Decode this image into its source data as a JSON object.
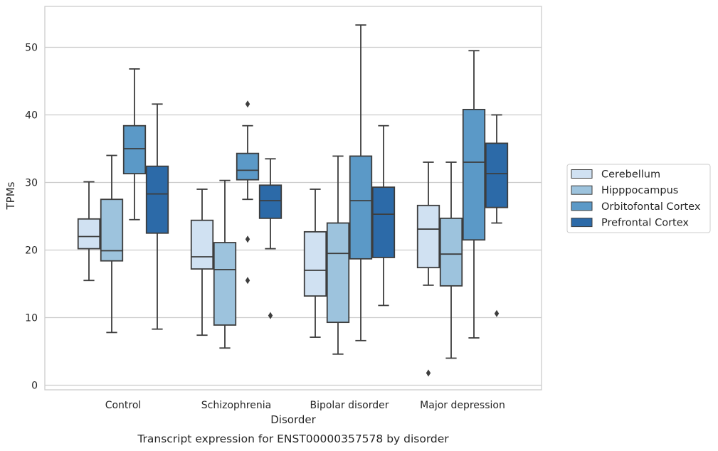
{
  "chart_data": {
    "type": "box",
    "caption": "Transcript expression for ENST00000357578 by disorder",
    "xlabel": "Disorder",
    "ylabel": "TPMs",
    "ylim": [
      -0.5,
      56
    ],
    "yticks": [
      0,
      10,
      20,
      30,
      40,
      50
    ],
    "grid": "horizontal",
    "legend_position": "right",
    "categories": [
      "Control",
      "Schizophrenia",
      "Bipolar disorder",
      "Major depression"
    ],
    "series": [
      {
        "name": "Cerebellum",
        "color": "#d0e1f2",
        "boxes": [
          {
            "whislo": 15.5,
            "q1": 20.2,
            "med": 22.0,
            "q3": 24.6,
            "whishi": 30.1,
            "fliers": []
          },
          {
            "whislo": 7.4,
            "q1": 17.2,
            "med": 19.0,
            "q3": 24.4,
            "whishi": 29.0,
            "fliers": []
          },
          {
            "whislo": 7.1,
            "q1": 13.2,
            "med": 17.0,
            "q3": 22.7,
            "whishi": 29.0,
            "fliers": []
          },
          {
            "whislo": 14.8,
            "q1": 17.4,
            "med": 23.1,
            "q3": 26.6,
            "whishi": 33.0,
            "fliers": [
              1.8
            ]
          }
        ]
      },
      {
        "name": "Hipppocampus",
        "color": "#9dc3dd",
        "boxes": [
          {
            "whislo": 7.8,
            "q1": 18.4,
            "med": 19.9,
            "q3": 27.5,
            "whishi": 34.0,
            "fliers": []
          },
          {
            "whislo": 5.5,
            "q1": 8.9,
            "med": 17.1,
            "q3": 21.1,
            "whishi": 30.3,
            "fliers": []
          },
          {
            "whislo": 4.6,
            "q1": 9.3,
            "med": 19.5,
            "q3": 24.0,
            "whishi": 33.9,
            "fliers": []
          },
          {
            "whislo": 4.0,
            "q1": 14.7,
            "med": 19.4,
            "q3": 24.7,
            "whishi": 33.0,
            "fliers": []
          }
        ]
      },
      {
        "name": "Orbitofontal Cortex",
        "color": "#5b99c7",
        "boxes": [
          {
            "whislo": 24.5,
            "q1": 31.3,
            "med": 35.0,
            "q3": 38.4,
            "whishi": 46.8,
            "fliers": []
          },
          {
            "whislo": 27.5,
            "q1": 30.4,
            "med": 31.8,
            "q3": 34.3,
            "whishi": 38.4,
            "fliers": [
              41.6,
              21.6,
              15.5
            ]
          },
          {
            "whislo": 6.6,
            "q1": 18.7,
            "med": 27.3,
            "q3": 33.9,
            "whishi": 53.3,
            "fliers": []
          },
          {
            "whislo": 7.0,
            "q1": 21.5,
            "med": 33.0,
            "q3": 40.8,
            "whishi": 49.5,
            "fliers": []
          }
        ]
      },
      {
        "name": "Prefrontal Cortex",
        "color": "#2c6aa8",
        "boxes": [
          {
            "whislo": 8.3,
            "q1": 22.5,
            "med": 28.3,
            "q3": 32.4,
            "whishi": 41.6,
            "fliers": []
          },
          {
            "whislo": 20.2,
            "q1": 24.7,
            "med": 27.3,
            "q3": 29.6,
            "whishi": 33.5,
            "fliers": [
              10.3
            ]
          },
          {
            "whislo": 11.8,
            "q1": 18.9,
            "med": 25.3,
            "q3": 29.3,
            "whishi": 38.4,
            "fliers": []
          },
          {
            "whislo": 24.0,
            "q1": 26.3,
            "med": 31.3,
            "q3": 35.8,
            "whishi": 40.0,
            "fliers": [
              10.6
            ]
          }
        ]
      }
    ]
  }
}
